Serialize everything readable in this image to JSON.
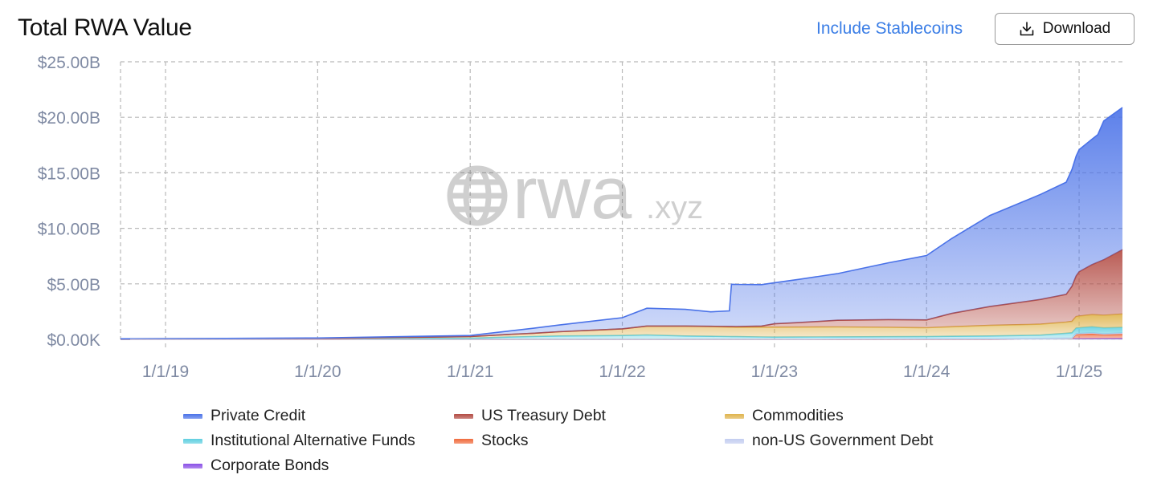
{
  "header": {
    "title": "Total RWA Value",
    "toggle_label": "Include Stablecoins",
    "download_label": "Download"
  },
  "watermark": {
    "main": "rwa",
    "suffix": ".xyz"
  },
  "chart_data": {
    "type": "area",
    "stacked": true,
    "title": "Total RWA Value",
    "xlabel": "",
    "ylabel": "",
    "x_axis": {
      "start": "2018-09-15",
      "end": "2025-04-15",
      "tick_labels": [
        "1/1/19",
        "1/1/20",
        "1/1/21",
        "1/1/22",
        "1/1/23",
        "1/1/24",
        "1/1/25"
      ]
    },
    "y_axis": {
      "min": 0,
      "max": 25,
      "unit": "billion USD",
      "tick_values": [
        0,
        5,
        10,
        15,
        20,
        25
      ],
      "tick_labels": [
        "$0.00K",
        "$5.00B",
        "$10.00B",
        "$15.00B",
        "$20.00B",
        "$25.00B"
      ]
    },
    "grid": true,
    "legend_position": "bottom",
    "series_order_bottom_to_top": [
      "Corporate Bonds",
      "Stocks",
      "non-US Government Debt",
      "Institutional Alternative Funds",
      "Commodities",
      "US Treasury Debt",
      "Private Credit"
    ],
    "legend": [
      {
        "name": "Private Credit",
        "color": "#4a72e8"
      },
      {
        "name": "US Treasury Debt",
        "color": "#b24a42"
      },
      {
        "name": "Commodities",
        "color": "#dfb34c"
      },
      {
        "name": "Institutional Alternative Funds",
        "color": "#5fcfe0"
      },
      {
        "name": "Stocks",
        "color": "#f06a3c"
      },
      {
        "name": "non-US Government Debt",
        "color": "#c3cdf0"
      },
      {
        "name": "Corporate Bonds",
        "color": "#8a4fe6"
      }
    ],
    "series": [
      {
        "name": "Corporate Bonds",
        "color": "#8a4fe6",
        "points": [
          [
            "2018-09-15",
            0
          ],
          [
            "2024-06-01",
            0
          ],
          [
            "2024-12-01",
            0.05
          ],
          [
            "2025-04-15",
            0.08
          ]
        ]
      },
      {
        "name": "Stocks",
        "color": "#f06a3c",
        "points": [
          [
            "2018-09-15",
            0
          ],
          [
            "2024-12-15",
            0
          ],
          [
            "2024-12-25",
            0.4
          ],
          [
            "2025-02-01",
            0.45
          ],
          [
            "2025-03-01",
            0.35
          ],
          [
            "2025-04-15",
            0.4
          ]
        ]
      },
      {
        "name": "non-US Government Debt",
        "color": "#c3cdf0",
        "points": [
          [
            "2018-09-15",
            0
          ],
          [
            "2023-01-01",
            0
          ],
          [
            "2024-01-01",
            0.05
          ],
          [
            "2024-12-01",
            0.05
          ],
          [
            "2025-04-15",
            0.1
          ]
        ]
      },
      {
        "name": "Institutional Alternative Funds",
        "color": "#5fcfe0",
        "points": [
          [
            "2018-09-15",
            0.05
          ],
          [
            "2020-01-01",
            0.05
          ],
          [
            "2021-01-01",
            0.1
          ],
          [
            "2021-04-01",
            0.2
          ],
          [
            "2021-08-01",
            0.3
          ],
          [
            "2022-01-01",
            0.35
          ],
          [
            "2022-03-01",
            0.4
          ],
          [
            "2022-06-01",
            0.3
          ],
          [
            "2023-01-01",
            0.2
          ],
          [
            "2024-01-01",
            0.2
          ],
          [
            "2024-10-01",
            0.3
          ],
          [
            "2024-12-20",
            0.5
          ],
          [
            "2025-02-01",
            0.55
          ],
          [
            "2025-04-15",
            0.5
          ]
        ]
      },
      {
        "name": "Commodities",
        "color": "#dfb34c",
        "points": [
          [
            "2018-09-15",
            0
          ],
          [
            "2020-01-01",
            0.02
          ],
          [
            "2021-01-01",
            0.15
          ],
          [
            "2021-06-01",
            0.3
          ],
          [
            "2022-01-01",
            0.6
          ],
          [
            "2022-03-01",
            0.8
          ],
          [
            "2022-06-01",
            0.9
          ],
          [
            "2022-10-01",
            0.85
          ],
          [
            "2023-01-01",
            0.9
          ],
          [
            "2023-06-01",
            0.9
          ],
          [
            "2024-01-01",
            0.8
          ],
          [
            "2024-06-01",
            0.95
          ],
          [
            "2024-12-01",
            1.0
          ],
          [
            "2025-04-15",
            1.2
          ]
        ]
      },
      {
        "name": "US Treasury Debt",
        "color": "#b24a42",
        "points": [
          [
            "2018-09-15",
            0
          ],
          [
            "2022-06-01",
            0
          ],
          [
            "2022-12-01",
            0.1
          ],
          [
            "2023-01-01",
            0.3
          ],
          [
            "2023-03-01",
            0.4
          ],
          [
            "2023-06-01",
            0.6
          ],
          [
            "2023-10-01",
            0.7
          ],
          [
            "2024-01-01",
            0.7
          ],
          [
            "2024-03-01",
            1.2
          ],
          [
            "2024-06-01",
            1.7
          ],
          [
            "2024-09-01",
            2.1
          ],
          [
            "2024-12-01",
            2.5
          ],
          [
            "2025-01-01",
            4.0
          ],
          [
            "2025-02-01",
            4.5
          ],
          [
            "2025-03-01",
            5.0
          ],
          [
            "2025-04-15",
            5.8
          ]
        ]
      },
      {
        "name": "Private Credit",
        "color": "#4a72e8",
        "points": [
          [
            "2018-09-15",
            0
          ],
          [
            "2020-01-01",
            0.05
          ],
          [
            "2021-01-01",
            0.1
          ],
          [
            "2021-04-01",
            0.3
          ],
          [
            "2021-08-01",
            0.6
          ],
          [
            "2022-01-01",
            1.0
          ],
          [
            "2022-03-01",
            1.6
          ],
          [
            "2022-06-01",
            1.5
          ],
          [
            "2022-08-01",
            1.3
          ],
          [
            "2022-09-15",
            1.4
          ],
          [
            "2022-09-20",
            3.8
          ],
          [
            "2023-01-01",
            3.7
          ],
          [
            "2023-06-01",
            4.2
          ],
          [
            "2024-01-01",
            5.8
          ],
          [
            "2024-06-01",
            8.2
          ],
          [
            "2024-12-01",
            10.1
          ],
          [
            "2025-01-01",
            11.0
          ],
          [
            "2025-02-01",
            11.3
          ],
          [
            "2025-02-15",
            11.5
          ],
          [
            "2025-03-01",
            12.5
          ],
          [
            "2025-04-15",
            12.8
          ]
        ]
      }
    ]
  }
}
